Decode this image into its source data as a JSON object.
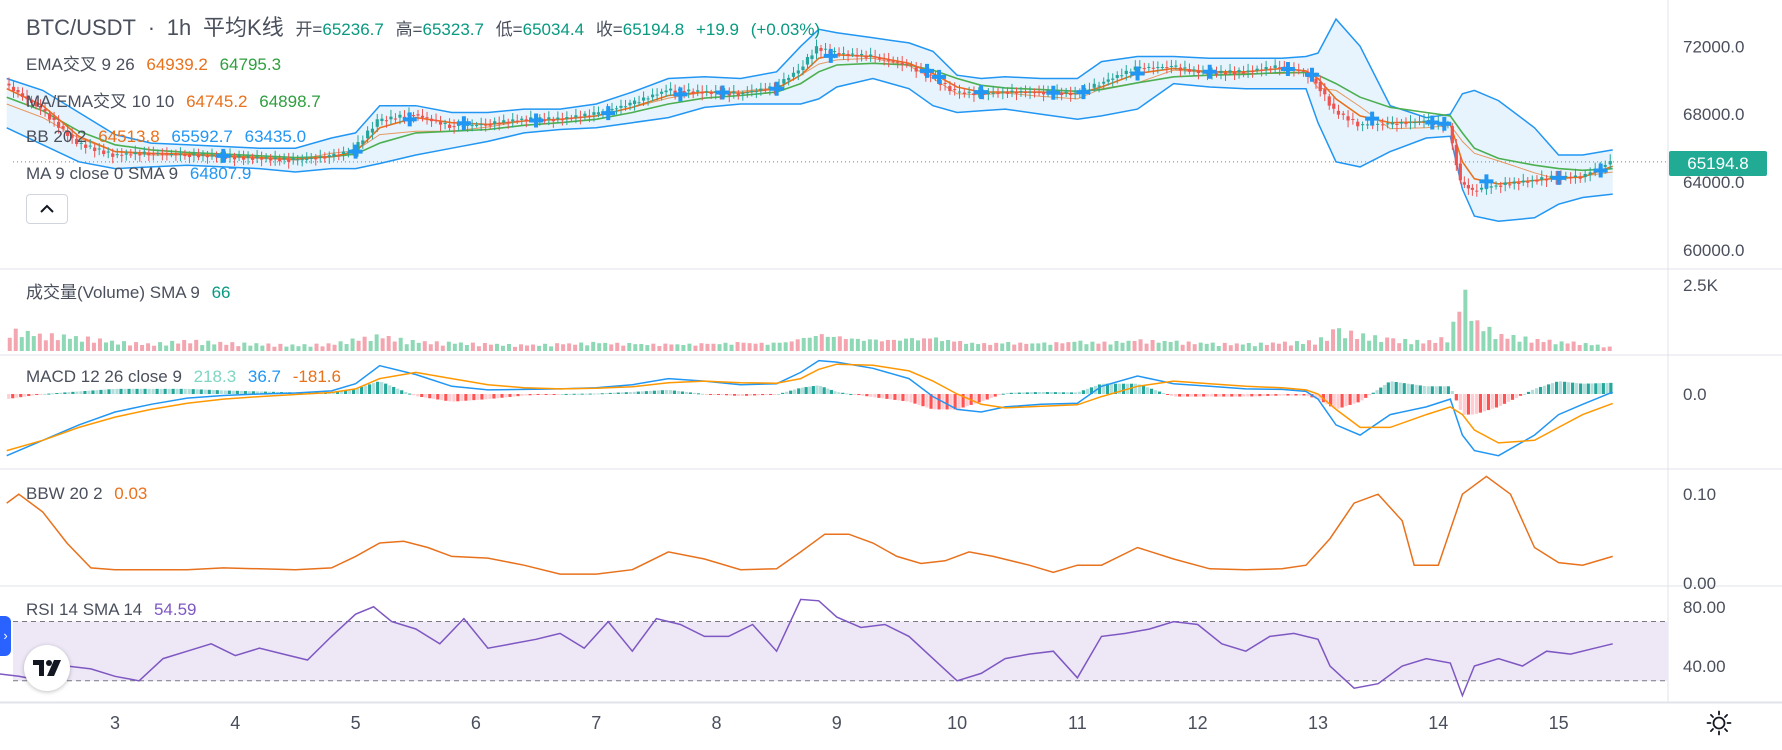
{
  "header": {
    "symbol": "BTC/USDT",
    "sep": "·",
    "interval": "1h",
    "chart_style": "平均K线",
    "open_label": "开=",
    "open": "65236.7",
    "high_label": "高=",
    "high": "65323.7",
    "low_label": "低=",
    "low": "65034.4",
    "close_label": "收=",
    "close": "65194.8",
    "change": "+19.9",
    "change_pct": "(+0.03%)"
  },
  "indicators": {
    "ema_cross": {
      "label": "EMA交叉 9 26",
      "v1": "64939.2",
      "v2": "64795.3"
    },
    "ma_ema_cross": {
      "label": "MA/EMA交叉 10 10",
      "v1": "64745.2",
      "v2": "64898.7"
    },
    "bb": {
      "label": "BB 20 2",
      "v1": "64513.8",
      "v2": "65592.7",
      "v3": "63435.0"
    },
    "ma": {
      "label": "MA 9 close 0 SMA 9",
      "v1": "64807.9"
    },
    "volume": {
      "label": "成交量(Volume) SMA 9",
      "v1": "66"
    },
    "macd": {
      "label": "MACD 12 26 close 9",
      "v1": "218.3",
      "v2": "36.7",
      "v3": "-181.6"
    },
    "bbw": {
      "label": "BBW 20 2",
      "v1": "0.03"
    },
    "rsi": {
      "label": "RSI 14 SMA 14",
      "v1": "54.59"
    }
  },
  "price_tag": "65194.8",
  "colors": {
    "up": "#26a69a",
    "down": "#ef5350",
    "ema_fast": "#e8711c",
    "ema_slow": "#4caf50",
    "bb_band": "#2196f3",
    "bb_fill": "#e3f2fd",
    "macd": "#2196f3",
    "signal": "#ff9800",
    "rsi": "#7e57c2",
    "rsi_fill": "#ede7f6",
    "accent": "#2962ff"
  },
  "icons": {
    "collapse": "chevron-up-icon",
    "settings": "sun-settings-icon",
    "logo": "tradingview-logo-icon",
    "handle": "chevron-right-icon"
  },
  "chart_data": [
    {
      "type": "candlestick",
      "title": "BTC/USDT · 1h · 平均K线",
      "x_ticks": [
        "3",
        "4",
        "5",
        "6",
        "7",
        "8",
        "9",
        "10",
        "11",
        "12",
        "13",
        "14",
        "15"
      ],
      "y_ticks": [
        "72000.0",
        "68000.0",
        "64000.0",
        "60000.0"
      ],
      "ylim": [
        59300,
        73900
      ],
      "close_series": {
        "x": [
          2.1,
          2.4,
          2.7,
          3.0,
          3.3,
          3.6,
          3.9,
          4.2,
          4.5,
          4.8,
          5.0,
          5.2,
          5.5,
          5.8,
          6.1,
          6.4,
          6.7,
          7.0,
          7.3,
          7.6,
          7.9,
          8.2,
          8.5,
          8.7,
          8.85,
          9.0,
          9.3,
          9.6,
          9.8,
          10.0,
          10.2,
          10.4,
          10.7,
          11.0,
          11.2,
          11.5,
          11.8,
          12.1,
          12.4,
          12.7,
          12.9,
          13.0,
          13.15,
          13.35,
          13.6,
          13.9,
          14.1,
          14.2,
          14.3,
          14.5,
          14.8,
          15.0,
          15.2,
          15.45
        ],
        "y": [
          69800,
          68300,
          66300,
          65600,
          65700,
          65600,
          65500,
          65400,
          65300,
          65500,
          65900,
          67600,
          68000,
          67300,
          67400,
          67700,
          67700,
          68000,
          68600,
          69400,
          69300,
          69200,
          69600,
          70600,
          71900,
          71600,
          71400,
          70900,
          70200,
          69300,
          69200,
          69300,
          69300,
          69200,
          69800,
          70700,
          70800,
          70400,
          70500,
          70800,
          70500,
          69900,
          68200,
          67400,
          67400,
          67600,
          67300,
          64000,
          63500,
          63800,
          64100,
          64300,
          64300,
          65195
        ]
      },
      "bb_upper": [
        70100,
        69400,
        68100,
        66800,
        66300,
        66200,
        66100,
        66000,
        66000,
        66600,
        66900,
        68500,
        68500,
        68100,
        68100,
        68300,
        68300,
        68600,
        69300,
        70100,
        70200,
        70100,
        70500,
        72000,
        73000,
        72800,
        72500,
        72200,
        71700,
        70300,
        70100,
        70200,
        70100,
        70100,
        71100,
        71400,
        71400,
        71300,
        71300,
        71300,
        71400,
        71600,
        73600,
        72000,
        68500,
        67800,
        68000,
        69200,
        69400,
        68800,
        67200,
        65600,
        65600,
        65900
      ],
      "bb_lower": [
        67200,
        66200,
        65200,
        64800,
        64900,
        65000,
        64900,
        64800,
        64600,
        64800,
        64800,
        65100,
        65600,
        66000,
        66400,
        66900,
        67100,
        67200,
        67500,
        67800,
        68400,
        68600,
        68600,
        68600,
        68900,
        69600,
        70100,
        69500,
        68500,
        68100,
        68200,
        68300,
        68000,
        67700,
        67900,
        68300,
        69800,
        69600,
        69500,
        69500,
        69500,
        67500,
        65200,
        64900,
        65800,
        66600,
        66700,
        63600,
        62000,
        61700,
        61900,
        62700,
        63100,
        63300
      ],
      "bb_basis": [
        68600,
        67800,
        66600,
        65800,
        65600,
        65600,
        65500,
        65400,
        65300,
        65700,
        65850,
        66800,
        67000,
        67000,
        67250,
        67600,
        67700,
        67900,
        68400,
        68950,
        69300,
        69350,
        69550,
        70300,
        70950,
        71200,
        71300,
        70850,
        70100,
        69200,
        69150,
        69250,
        69050,
        68900,
        69500,
        69850,
        70600,
        70450,
        70400,
        70400,
        70450,
        69550,
        69400,
        68450,
        67150,
        67200,
        67350,
        66400,
        65700,
        65250,
        64550,
        64150,
        64350,
        64600
      ],
      "ema_fast": [
        69500,
        68500,
        66700,
        65800,
        65700,
        65650,
        65550,
        65450,
        65350,
        65500,
        65800,
        67200,
        67800,
        67500,
        67400,
        67600,
        67700,
        67900,
        68400,
        69100,
        69300,
        69250,
        69500,
        70300,
        71300,
        71500,
        71400,
        71000,
        70400,
        69600,
        69300,
        69300,
        69300,
        69200,
        69600,
        70400,
        70700,
        70500,
        70500,
        70700,
        70550,
        70100,
        68900,
        67900,
        67500,
        67550,
        67400,
        65200,
        64200,
        63900,
        64100,
        64250,
        64300,
        64940
      ],
      "ema_slow": [
        69000,
        68200,
        67000,
        66200,
        65900,
        65750,
        65650,
        65550,
        65450,
        65500,
        65650,
        66300,
        66900,
        67000,
        67100,
        67350,
        67500,
        67700,
        68100,
        68600,
        68950,
        69100,
        69300,
        69800,
        70500,
        70900,
        71000,
        70900,
        70600,
        70100,
        69700,
        69550,
        69450,
        69350,
        69450,
        69850,
        70200,
        70300,
        70350,
        70450,
        70450,
        70300,
        69800,
        69000,
        68400,
        68100,
        67900,
        66900,
        66000,
        65400,
        65000,
        64800,
        64700,
        64795
      ]
    },
    {
      "type": "bar",
      "title": "成交量(Volume) SMA 9",
      "y_ticks": [
        "2.5K"
      ],
      "note": "volume histogram, values approximate in contracts",
      "ylim": [
        0,
        3000
      ],
      "x": [
        2.1,
        2.4,
        2.7,
        3.0,
        3.3,
        3.6,
        3.9,
        4.2,
        4.5,
        4.8,
        5.0,
        5.2,
        5.5,
        5.8,
        6.1,
        6.4,
        6.7,
        7.0,
        7.3,
        7.6,
        7.9,
        8.2,
        8.5,
        8.7,
        8.85,
        9.0,
        9.3,
        9.6,
        9.8,
        10.0,
        10.2,
        10.4,
        10.7,
        11.0,
        11.2,
        11.5,
        11.8,
        12.1,
        12.4,
        12.7,
        12.9,
        13.0,
        13.15,
        13.35,
        13.6,
        13.9,
        14.1,
        14.2,
        14.3,
        14.5,
        14.8,
        15.0,
        15.2,
        15.45
      ],
      "values": [
        900,
        700,
        600,
        400,
        300,
        450,
        350,
        300,
        250,
        300,
        500,
        650,
        400,
        350,
        300,
        250,
        300,
        350,
        300,
        280,
        300,
        350,
        320,
        500,
        700,
        600,
        450,
        500,
        550,
        400,
        300,
        350,
        320,
        400,
        350,
        450,
        400,
        320,
        300,
        350,
        400,
        450,
        900,
        700,
        500,
        400,
        600,
        2800,
        1300,
        700,
        500,
        400,
        350,
        150
      ]
    },
    {
      "type": "line",
      "title": "MACD 12 26 close 9",
      "y_ticks": [
        "0.0"
      ],
      "ylim": [
        -1400,
        700
      ],
      "x": [
        2.1,
        2.4,
        2.7,
        3.0,
        3.3,
        3.6,
        3.9,
        4.2,
        4.5,
        4.8,
        5.0,
        5.2,
        5.5,
        5.8,
        6.1,
        6.4,
        6.7,
        7.0,
        7.3,
        7.6,
        7.9,
        8.2,
        8.5,
        8.7,
        8.85,
        9.0,
        9.3,
        9.6,
        9.8,
        10.0,
        10.2,
        10.4,
        10.7,
        11.0,
        11.2,
        11.5,
        11.8,
        12.1,
        12.4,
        12.7,
        12.9,
        13.0,
        13.15,
        13.35,
        13.6,
        13.9,
        14.1,
        14.2,
        14.3,
        14.5,
        14.8,
        15.0,
        15.2,
        15.45
      ],
      "macd": [
        -1200,
        -900,
        -600,
        -350,
        -200,
        -80,
        -30,
        0,
        20,
        60,
        200,
        550,
        380,
        150,
        80,
        90,
        100,
        120,
        180,
        300,
        250,
        180,
        200,
        420,
        650,
        620,
        500,
        300,
        -50,
        -300,
        -350,
        -250,
        -200,
        -180,
        150,
        350,
        200,
        150,
        100,
        90,
        50,
        -100,
        -600,
        -800,
        -400,
        -250,
        -100,
        -800,
        -1100,
        -1200,
        -800,
        -400,
        -200,
        37
      ],
      "signal": [
        -1100,
        -900,
        -650,
        -450,
        -300,
        -180,
        -100,
        -50,
        -10,
        30,
        100,
        300,
        420,
        300,
        180,
        120,
        100,
        110,
        140,
        220,
        250,
        220,
        210,
        300,
        480,
        580,
        560,
        450,
        250,
        0,
        -200,
        -270,
        -240,
        -210,
        -50,
        150,
        250,
        200,
        150,
        120,
        80,
        0,
        -300,
        -650,
        -650,
        -400,
        -250,
        -400,
        -700,
        -950,
        -900,
        -650,
        -400,
        -182
      ],
      "histogram": [
        -100,
        0,
        50,
        100,
        100,
        100,
        70,
        50,
        30,
        30,
        100,
        250,
        -40,
        -150,
        -100,
        -30,
        0,
        10,
        40,
        80,
        0,
        -40,
        -10,
        120,
        170,
        40,
        -60,
        -150,
        -300,
        -300,
        -150,
        20,
        40,
        30,
        200,
        200,
        -50,
        -50,
        -50,
        -30,
        -30,
        -100,
        -300,
        -150,
        250,
        150,
        150,
        -400,
        -400,
        -250,
        100,
        250,
        200,
        218
      ]
    },
    {
      "type": "line",
      "title": "BBW 20 2",
      "y_ticks": [
        "0.10",
        "0.00"
      ],
      "ylim": [
        0,
        0.125
      ],
      "x": [
        2.1,
        2.2,
        2.4,
        2.6,
        2.8,
        3.0,
        3.3,
        3.6,
        3.9,
        4.2,
        4.5,
        4.8,
        5.0,
        5.2,
        5.4,
        5.6,
        5.8,
        6.1,
        6.4,
        6.7,
        7.0,
        7.3,
        7.6,
        7.9,
        8.2,
        8.5,
        8.7,
        8.9,
        9.1,
        9.3,
        9.5,
        9.7,
        9.9,
        10.1,
        10.3,
        10.6,
        10.8,
        11.0,
        11.2,
        11.5,
        11.8,
        12.1,
        12.4,
        12.7,
        12.9,
        13.1,
        13.3,
        13.5,
        13.7,
        13.8,
        14.0,
        14.2,
        14.4,
        14.6,
        14.8,
        15.0,
        15.2,
        15.45
      ],
      "values": [
        0.09,
        0.1,
        0.08,
        0.045,
        0.017,
        0.015,
        0.015,
        0.015,
        0.017,
        0.016,
        0.015,
        0.017,
        0.03,
        0.045,
        0.047,
        0.04,
        0.03,
        0.028,
        0.02,
        0.01,
        0.01,
        0.015,
        0.035,
        0.027,
        0.015,
        0.016,
        0.035,
        0.055,
        0.055,
        0.045,
        0.03,
        0.022,
        0.025,
        0.035,
        0.03,
        0.02,
        0.012,
        0.02,
        0.02,
        0.04,
        0.027,
        0.016,
        0.015,
        0.016,
        0.02,
        0.05,
        0.09,
        0.1,
        0.07,
        0.02,
        0.02,
        0.1,
        0.12,
        0.1,
        0.04,
        0.023,
        0.02,
        0.03
      ]
    },
    {
      "type": "line",
      "title": "RSI 14 SMA 14",
      "y_ticks": [
        "80.00",
        "40.00"
      ],
      "ylim": [
        17,
        92
      ],
      "band": [
        30,
        70
      ],
      "x": [
        2.0,
        2.2,
        2.4,
        2.6,
        2.8,
        3.0,
        3.2,
        3.4,
        3.6,
        3.8,
        4.0,
        4.2,
        4.4,
        4.6,
        4.8,
        5.0,
        5.15,
        5.3,
        5.5,
        5.7,
        5.9,
        6.1,
        6.3,
        6.5,
        6.7,
        6.9,
        7.1,
        7.3,
        7.5,
        7.7,
        7.9,
        8.1,
        8.3,
        8.5,
        8.7,
        8.85,
        9.0,
        9.2,
        9.4,
        9.6,
        9.8,
        10.0,
        10.2,
        10.4,
        10.6,
        10.8,
        11.0,
        11.2,
        11.4,
        11.6,
        11.8,
        12.0,
        12.2,
        12.4,
        12.6,
        12.8,
        13.0,
        13.1,
        13.3,
        13.5,
        13.7,
        13.9,
        14.1,
        14.2,
        14.3,
        14.5,
        14.7,
        14.9,
        15.1,
        15.3,
        15.45
      ],
      "values": [
        35,
        33,
        30,
        40,
        38,
        33,
        30,
        45,
        50,
        55,
        47,
        52,
        48,
        44,
        60,
        75,
        80,
        70,
        65,
        55,
        72,
        52,
        55,
        58,
        62,
        52,
        70,
        50,
        72,
        68,
        60,
        60,
        68,
        50,
        85,
        84,
        73,
        66,
        68,
        60,
        45,
        30,
        35,
        45,
        48,
        50,
        32,
        60,
        62,
        65,
        70,
        68,
        55,
        50,
        60,
        62,
        58,
        40,
        25,
        28,
        40,
        45,
        42,
        20,
        40,
        45,
        40,
        50,
        48,
        52,
        55
      ]
    }
  ]
}
